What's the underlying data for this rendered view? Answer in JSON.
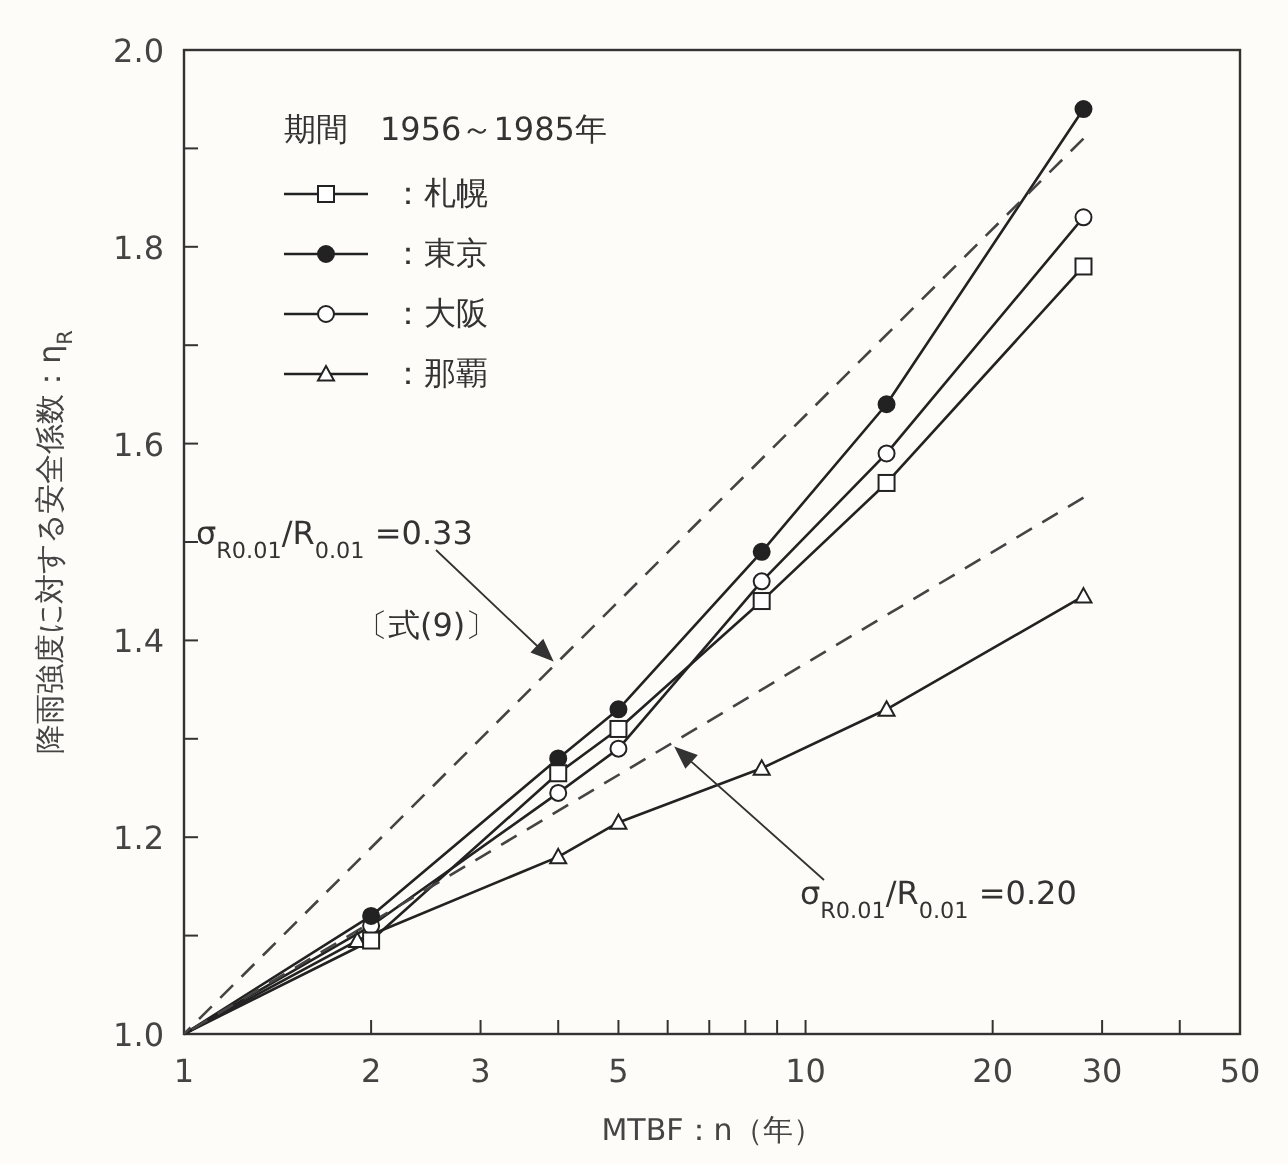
{
  "chart_data": {
    "type": "line",
    "xlabel": "MTBF：n（年）",
    "ylabel": "降雨強度に対する安全係数：η$_{R}$",
    "legend_title": "期間　1956～1985年",
    "legend": "top left",
    "log": "x",
    "grid": false,
    "xlim": [
      1,
      50
    ],
    "xticks": [
      1,
      2,
      3,
      {
        "value": 4,
        "label": null
      },
      5,
      {
        "value": 6,
        "label": null
      },
      {
        "value": 7,
        "label": null
      },
      {
        "value": 8,
        "label": null
      },
      {
        "value": 9,
        "label": null
      },
      10,
      20,
      30,
      {
        "value": 40,
        "label": null
      },
      50
    ],
    "ylim": [
      1.0,
      2.0
    ],
    "yticks": [
      {
        "value": 1.0,
        "label": "1.0"
      },
      {
        "value": 1.1,
        "label": null
      },
      1.2,
      {
        "value": 1.3,
        "label": null
      },
      1.4,
      {
        "value": 1.5,
        "label": null
      },
      1.6,
      {
        "value": 1.7,
        "label": null
      },
      1.8,
      {
        "value": 1.9,
        "label": null
      },
      {
        "value": 2.0,
        "label": "2.0"
      }
    ],
    "series": [
      {
        "name": "：札幌",
        "color": "#222222",
        "marker": "square",
        "colors": [
          null,
          "#ffffff",
          "#ffffff",
          "#ffffff",
          "#ffffff",
          "#ffffff",
          "#ffffff"
        ],
        "line_style": "solid",
        "x": [
          1,
          2,
          4,
          5,
          8.5,
          13.5,
          28
        ],
        "values": [
          1.0,
          1.095,
          1.265,
          1.31,
          1.44,
          1.56,
          1.78
        ]
      },
      {
        "name": "：東京",
        "color": "#222222",
        "marker": "circle",
        "colors": [
          null,
          "#222222",
          "#222222",
          "#222222",
          "#222222",
          "#222222",
          "#222222"
        ],
        "line_style": "solid",
        "x": [
          1,
          2,
          4,
          5,
          8.5,
          13.5,
          28
        ],
        "values": [
          1.0,
          1.12,
          1.28,
          1.33,
          1.49,
          1.64,
          1.94
        ]
      },
      {
        "name": "：大阪",
        "color": "#222222",
        "marker": "circle",
        "colors": [
          null,
          "#ffffff",
          "#ffffff",
          "#ffffff",
          "#ffffff",
          "#ffffff",
          "#ffffff"
        ],
        "line_style": "solid",
        "x": [
          1,
          2,
          4,
          5,
          8.5,
          13.5,
          28
        ],
        "values": [
          1.0,
          1.11,
          1.245,
          1.29,
          1.46,
          1.59,
          1.83
        ]
      },
      {
        "name": "：那覇",
        "color": "#222222",
        "marker": "triangle",
        "colors": [
          null,
          "#ffffff",
          "#ffffff",
          "#ffffff",
          "#ffffff",
          "#ffffff",
          "#ffffff"
        ],
        "line_style": "solid",
        "x": [
          1,
          1.9,
          4,
          5,
          8.5,
          13.5,
          28
        ],
        "values": [
          1.0,
          1.095,
          1.18,
          1.215,
          1.27,
          1.33,
          1.445
        ]
      },
      {
        "color": "#444444",
        "marker": "none",
        "line_style": "dashed",
        "x": [
          1,
          28
        ],
        "values": [
          1.0,
          1.91
        ]
      },
      {
        "color": "#444444",
        "marker": "none",
        "line_style": "dashed",
        "x": [
          1,
          28
        ],
        "values": [
          1.0,
          1.545
        ]
      }
    ],
    "annotations": [
      "σ$_{R0.01}$/R$_{0.01}$ =0.33",
      "〔式(9)〕",
      "σ$_{R0.01}$/R$_{0.01}$ =0.20"
    ]
  }
}
